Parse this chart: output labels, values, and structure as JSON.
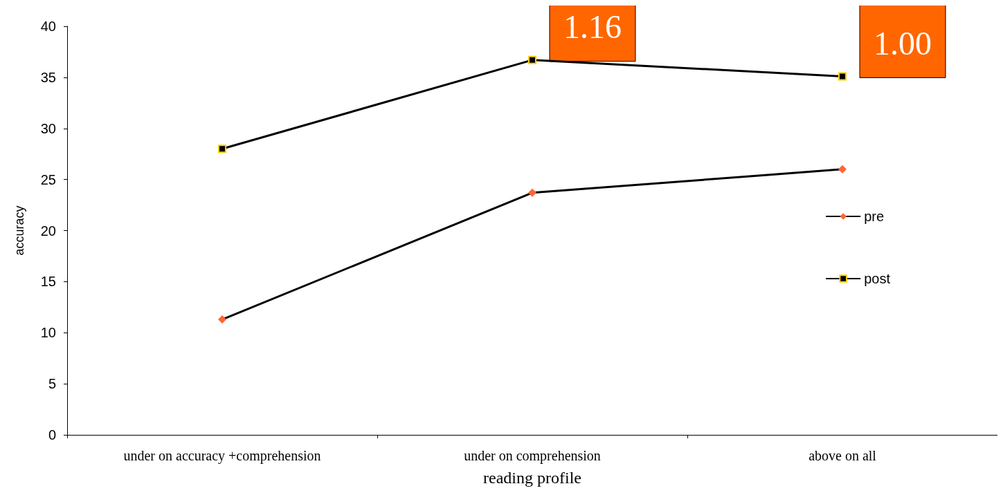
{
  "chart_data": {
    "type": "line",
    "xlabel": "reading profile",
    "ylabel": "accuracy",
    "categories": [
      "under on accuracy +comprehension",
      "under on comprehension",
      "above on all"
    ],
    "series": [
      {
        "name": "pre",
        "color": "#ff6633",
        "marker": "diamond",
        "values": [
          11.3,
          23.7,
          26
        ]
      },
      {
        "name": "post",
        "color": "#000000",
        "marker": "square",
        "values": [
          28,
          36.7,
          35.1
        ]
      }
    ],
    "ylim": [
      0,
      40
    ],
    "yticks": [
      0,
      5,
      10,
      15,
      20,
      25,
      30,
      35,
      40
    ],
    "grid": false,
    "legend": "right",
    "annotations": [
      {
        "text": "1.16",
        "x": "under on comprehension",
        "y": 36.7
      },
      {
        "text": "1.00",
        "x": "above on all",
        "y": 35.1
      }
    ]
  }
}
